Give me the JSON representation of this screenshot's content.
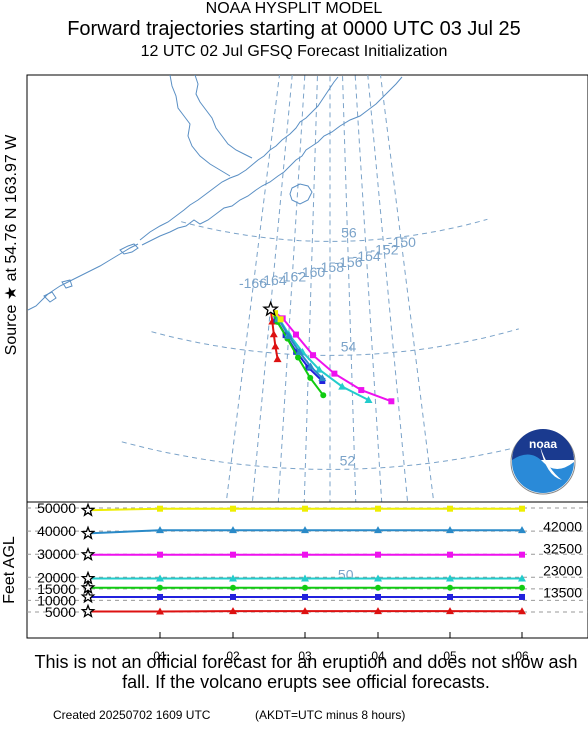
{
  "header": {
    "line1": "NOAA HYSPLIT MODEL",
    "line2": "Forward trajectories starting at 0000 UTC 03 Jul 25",
    "line3": "12 UTC 02 Jul    GFSQ  Forecast Initialization"
  },
  "side_label": "Source ★ at   54.76 N  163.97 W",
  "vertical_axis_label": "Feet AGL",
  "logo_text": "noaa",
  "footer": {
    "disclaimer": "This is not an official forecast for an eruption and does not show ash fall. If the volcano erupts see official forecasts.",
    "created": "Created 20250702 1609 UTC",
    "time_note": "(AKDT=UTC minus 8 hours)"
  },
  "colors": {
    "map_line": "#7ba3c9",
    "coast": "#5a8fc4",
    "start_marker": "#000000"
  },
  "chart_data": [
    {
      "type": "line",
      "title": "Forward trajectories starting at 0000 UTC 03 Jul 25",
      "map_labels": {
        "longitudes": [
          "-166",
          "-164",
          "-162",
          "-160",
          "-158",
          "-156",
          "-154",
          "-152",
          "-150"
        ],
        "latitudes": [
          "56",
          "54",
          "52",
          "50"
        ]
      },
      "source": {
        "lat": 54.76,
        "lon": -163.97
      },
      "series": [
        {
          "color": "#dd1111",
          "marker": "triangle",
          "points": [
            [
              -163.97,
              54.76
            ],
            [
              -163.7,
              54.55
            ],
            [
              -163.45,
              54.33
            ],
            [
              -163.2,
              54.12
            ],
            [
              -162.9,
              53.9
            ]
          ]
        },
        {
          "color": "#2222dd",
          "marker": "square",
          "points": [
            [
              -163.97,
              54.76
            ],
            [
              -163.3,
              54.58
            ],
            [
              -162.3,
              54.33
            ],
            [
              -161.2,
              54.05
            ],
            [
              -160.0,
              53.78
            ],
            [
              -158.7,
              53.55
            ]
          ]
        },
        {
          "color": "#11cc11",
          "marker": "circle",
          "points": [
            [
              -163.97,
              54.76
            ],
            [
              -163.2,
              54.55
            ],
            [
              -162.1,
              54.27
            ],
            [
              -161.0,
              53.95
            ],
            [
              -159.8,
              53.6
            ],
            [
              -158.6,
              53.3
            ]
          ]
        },
        {
          "color": "#22cccc",
          "marker": "triangle",
          "points": [
            [
              -163.97,
              54.76
            ],
            [
              -163.1,
              54.62
            ],
            [
              -162.0,
              54.35
            ],
            [
              -160.6,
              54.05
            ],
            [
              -159.0,
              53.75
            ],
            [
              -156.9,
              53.45
            ],
            [
              -154.6,
              53.2
            ]
          ]
        },
        {
          "color": "#2a8ac8",
          "marker": "triangle",
          "points": [
            [
              -163.97,
              54.76
            ],
            [
              -163.1,
              54.6
            ],
            [
              -162.0,
              54.32
            ],
            [
              -160.9,
              54.05
            ],
            [
              -159.8,
              53.8
            ],
            [
              -158.7,
              53.6
            ]
          ]
        },
        {
          "color": "#ee11ee",
          "marker": "square",
          "points": [
            [
              -163.97,
              54.76
            ],
            [
              -162.7,
              54.62
            ],
            [
              -161.3,
              54.35
            ],
            [
              -159.6,
              54.0
            ],
            [
              -157.6,
              53.68
            ],
            [
              -155.2,
              53.38
            ],
            [
              -152.6,
              53.15
            ]
          ]
        },
        {
          "color": "#eeee00",
          "marker": "square",
          "points": [
            [
              -163.97,
              54.76
            ],
            [
              -163.5,
              54.7
            ],
            [
              -162.9,
              54.6
            ]
          ]
        }
      ]
    },
    {
      "type": "line",
      "ylabel": "Feet AGL",
      "x_ticks": [
        "01",
        "02",
        "03",
        "04",
        "05",
        "06"
      ],
      "y_ticks": [
        "50000",
        "40000",
        "30000",
        "20000",
        "15000",
        "10000",
        "5000"
      ],
      "right_labels": [
        "42000",
        "32500",
        "23000",
        "13500"
      ],
      "ylim": [
        5000,
        50000
      ],
      "series": [
        {
          "color": "#eeee00",
          "marker": "square",
          "start": 49000,
          "values": [
            49700,
            49700,
            49700,
            49700,
            49700,
            49700
          ]
        },
        {
          "color": "#2a8ac8",
          "marker": "triangle",
          "start": 39000,
          "values": [
            40400,
            40400,
            40400,
            40400,
            40400,
            40400
          ]
        },
        {
          "color": "#ee11ee",
          "marker": "square",
          "start": 29800,
          "values": [
            29800,
            29800,
            29800,
            29800,
            29800,
            29800
          ]
        },
        {
          "color": "#22cccc",
          "marker": "triangle",
          "start": 19500,
          "values": [
            19500,
            19500,
            19500,
            19500,
            19500,
            19500
          ]
        },
        {
          "color": "#11cc11",
          "marker": "circle",
          "start": 15500,
          "values": [
            15500,
            15500,
            15500,
            15500,
            15500,
            15500
          ]
        },
        {
          "color": "#2222dd",
          "marker": "square",
          "start": 11500,
          "values": [
            11500,
            11500,
            11500,
            11500,
            11500,
            11500
          ]
        },
        {
          "color": "#dd1111",
          "marker": "triangle",
          "start": 5200,
          "values": [
            5200,
            5400,
            5400,
            5400,
            5400,
            5300
          ]
        }
      ]
    }
  ]
}
